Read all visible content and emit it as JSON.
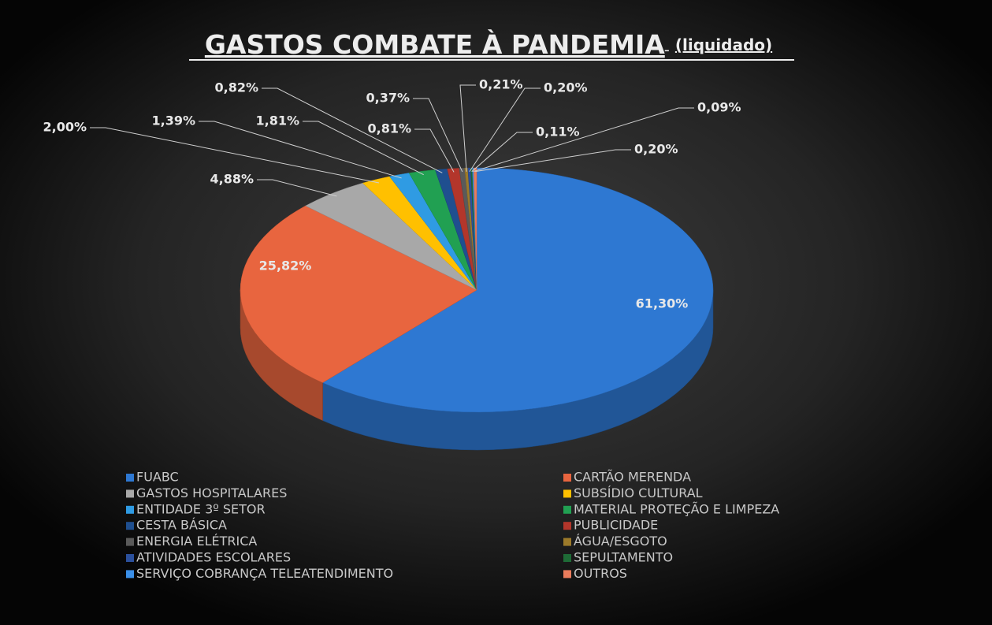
{
  "chart_data": {
    "type": "pie",
    "title": "GASTOS COMBATE À PANDEMIA",
    "subtitle": "(liquidado)",
    "categories": [
      "FUABC",
      "CARTÃO MERENDA",
      "GASTOS HOSPITALARES",
      "SUBSÍDIO CULTURAL",
      "ENTIDADE 3º SETOR",
      "MATERIAL PROTEÇÃO E LIMPEZA",
      "CESTA BÁSICA",
      "PUBLICIDADE",
      "ENERGIA ELÉTRICA",
      "ÁGUA/ESGOTO",
      "ATIVIDADES ESCOLARES",
      "SEPULTAMENTO",
      "SERVIÇO COBRANÇA TELEATENDIMENTO",
      "OUTROS"
    ],
    "values": [
      61.3,
      25.82,
      4.88,
      2.0,
      1.39,
      1.81,
      0.82,
      0.81,
      0.37,
      0.21,
      0.2,
      0.11,
      0.09,
      0.2
    ],
    "value_labels": [
      "61,30%",
      "25,82%",
      "4,88%",
      "2,00%",
      "1,39%",
      "1,81%",
      "0,82%",
      "0,81%",
      "0,37%",
      "0,21%",
      "0,20%",
      "0,11%",
      "0,09%",
      "0,20%"
    ],
    "colors": [
      "#2e78d2",
      "#e8653f",
      "#a8a8a8",
      "#ffc000",
      "#2f9be3",
      "#21a052",
      "#1f4f8f",
      "#b3362b",
      "#5a5a5a",
      "#9c7a2a",
      "#2b509c",
      "#1e6b36",
      "#3a8fe8",
      "#ea7c5c"
    ],
    "legend": "bottom"
  }
}
